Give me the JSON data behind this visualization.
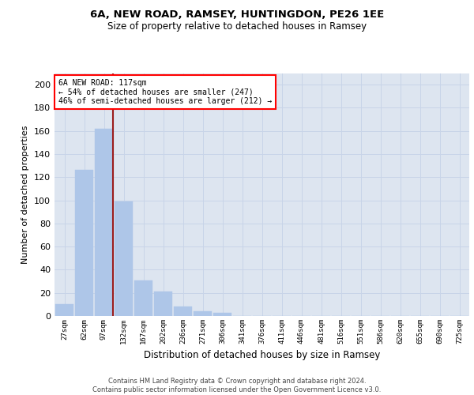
{
  "title1": "6A, NEW ROAD, RAMSEY, HUNTINGDON, PE26 1EE",
  "title2": "Size of property relative to detached houses in Ramsey",
  "xlabel": "Distribution of detached houses by size in Ramsey",
  "ylabel": "Number of detached properties",
  "categories": [
    "27sqm",
    "62sqm",
    "97sqm",
    "132sqm",
    "167sqm",
    "202sqm",
    "236sqm",
    "271sqm",
    "306sqm",
    "341sqm",
    "376sqm",
    "411sqm",
    "446sqm",
    "481sqm",
    "516sqm",
    "551sqm",
    "586sqm",
    "620sqm",
    "655sqm",
    "690sqm",
    "725sqm"
  ],
  "values": [
    10,
    126,
    162,
    99,
    31,
    21,
    8,
    4,
    3,
    0,
    0,
    0,
    0,
    0,
    0,
    0,
    0,
    0,
    0,
    0,
    0
  ],
  "bar_color": "#aec6e8",
  "bar_edge_color": "#aec6e8",
  "grid_color": "#c8d4e8",
  "bg_color": "#dde5f0",
  "vline_color": "#9b1c1c",
  "annotation_text": "6A NEW ROAD: 117sqm\n← 54% of detached houses are smaller (247)\n46% of semi-detached houses are larger (212) →",
  "annotation_box_color": "white",
  "annotation_box_edge": "red",
  "ylim": [
    0,
    210
  ],
  "yticks": [
    0,
    20,
    40,
    60,
    80,
    100,
    120,
    140,
    160,
    180,
    200
  ],
  "footer": "Contains HM Land Registry data © Crown copyright and database right 2024.\nContains public sector information licensed under the Open Government Licence v3.0."
}
